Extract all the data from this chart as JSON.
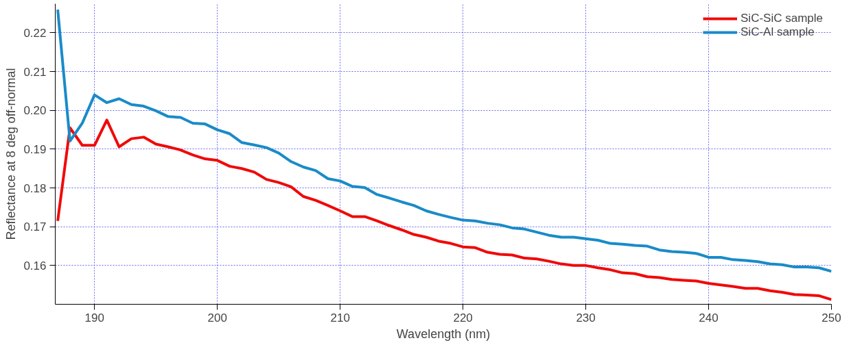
{
  "chart_data": {
    "type": "line",
    "xlabel": "Wavelength (nm)",
    "ylabel": "Reflectance at 8 deg off-normal",
    "x": [
      187,
      188,
      189,
      190,
      191,
      192,
      193,
      194,
      195,
      196,
      197,
      198,
      199,
      200,
      201,
      202,
      203,
      204,
      205,
      206,
      207,
      208,
      209,
      210,
      211,
      212,
      213,
      214,
      215,
      216,
      217,
      218,
      219,
      220,
      221,
      222,
      223,
      224,
      225,
      226,
      227,
      228,
      229,
      230,
      231,
      232,
      233,
      234,
      235,
      236,
      237,
      238,
      239,
      240,
      241,
      242,
      243,
      244,
      245,
      246,
      247,
      248,
      249,
      250
    ],
    "series": [
      {
        "name": "SiC-SiC sample",
        "color": "#f00a0a",
        "values": [
          0.1715,
          0.1955,
          0.191,
          0.191,
          0.1975,
          0.1906,
          0.1927,
          0.1931,
          0.1913,
          0.1906,
          0.1898,
          0.1885,
          0.1875,
          0.1871,
          0.1856,
          0.185,
          0.1841,
          0.1822,
          0.1814,
          0.1803,
          0.1778,
          0.1768,
          0.1755,
          0.1741,
          0.1726,
          0.1726,
          0.1715,
          0.1703,
          0.1692,
          0.168,
          0.1673,
          0.1663,
          0.1657,
          0.1648,
          0.1646,
          0.1634,
          0.1629,
          0.1627,
          0.1619,
          0.1617,
          0.1611,
          0.1604,
          0.16,
          0.16,
          0.1594,
          0.1589,
          0.1581,
          0.1579,
          0.1571,
          0.1569,
          0.1564,
          0.1562,
          0.156,
          0.1554,
          0.155,
          0.1546,
          0.1541,
          0.1541,
          0.1535,
          0.1531,
          0.1525,
          0.1524,
          0.1522,
          0.1512
        ]
      },
      {
        "name": "SiC-Al sample",
        "color": "#1a8bc8",
        "values": [
          0.226,
          0.1921,
          0.1967,
          0.204,
          0.202,
          0.203,
          0.2015,
          0.2011,
          0.1999,
          0.1984,
          0.1982,
          0.1967,
          0.1965,
          0.195,
          0.194,
          0.1917,
          0.1911,
          0.1904,
          0.189,
          0.1868,
          0.1854,
          0.1845,
          0.1824,
          0.1818,
          0.1804,
          0.1801,
          0.1783,
          0.1774,
          0.1764,
          0.1755,
          0.1741,
          0.1732,
          0.1724,
          0.1717,
          0.1715,
          0.1709,
          0.1705,
          0.1697,
          0.1694,
          0.1686,
          0.1678,
          0.1673,
          0.1673,
          0.1669,
          0.1665,
          0.1657,
          0.1655,
          0.1652,
          0.165,
          0.164,
          0.1636,
          0.1634,
          0.1631,
          0.1621,
          0.1621,
          0.1615,
          0.1613,
          0.161,
          0.1604,
          0.1602,
          0.1596,
          0.1596,
          0.1594,
          0.1585
        ]
      }
    ],
    "xlim": [
      186.8,
      250
    ],
    "ylim": [
      0.15,
      0.2275
    ],
    "xticks": [
      190,
      200,
      210,
      220,
      230,
      240,
      250
    ],
    "yticks": [
      0.16,
      0.17,
      0.18,
      0.19,
      {
        "value": 0.2,
        "label": "0.20"
      },
      0.21,
      0.22
    ],
    "grid": true,
    "legend": "top right",
    "line_style": "solid",
    "marker": "none"
  }
}
